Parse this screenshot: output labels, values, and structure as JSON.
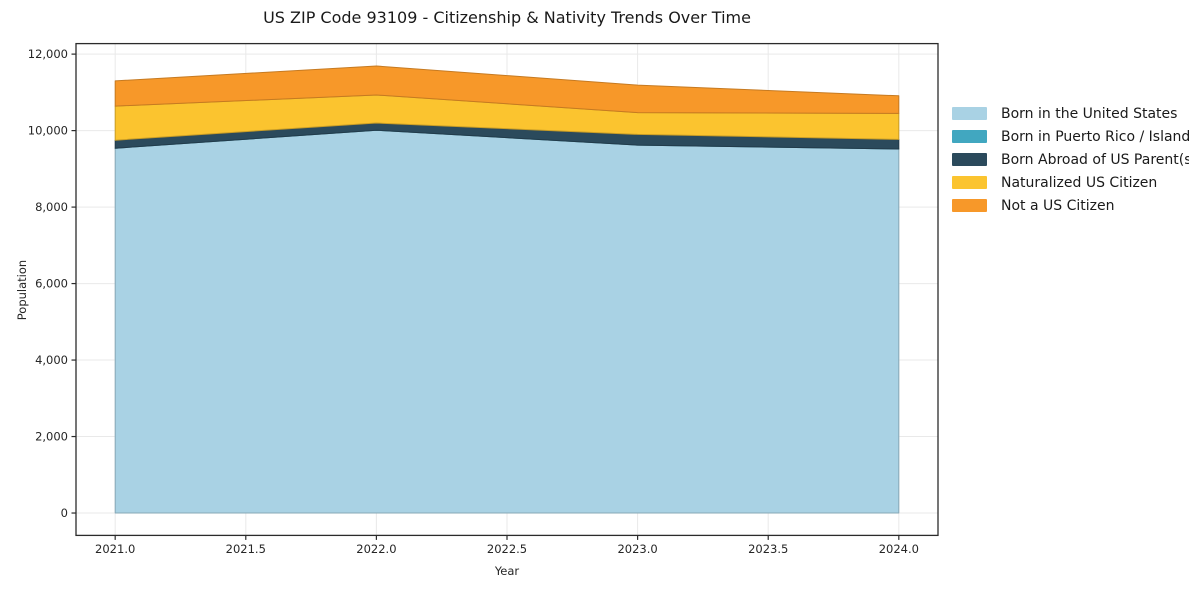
{
  "chart_data": {
    "type": "area",
    "stacked": true,
    "title": "US ZIP Code 93109 - Citizenship & Nativity Trends Over Time",
    "xlabel": "Year",
    "ylabel": "Population",
    "x": [
      2021,
      2022,
      2023,
      2024
    ],
    "series": [
      {
        "name": "Born in the United States",
        "color": "#a9d2e4",
        "values": [
          9540,
          10010,
          9620,
          9520
        ]
      },
      {
        "name": "Born in Puerto Rico / Islands",
        "color": "#41a7c0",
        "values": [
          0,
          0,
          0,
          0
        ]
      },
      {
        "name": "Born Abroad of US Parent(s)",
        "color": "#2b4a5c",
        "values": [
          210,
          190,
          280,
          250
        ]
      },
      {
        "name": "Naturalized US Citizen",
        "color": "#fbc42f",
        "values": [
          890,
          730,
          570,
          680
        ]
      },
      {
        "name": "Not a US Citizen",
        "color": "#f79829",
        "values": [
          660,
          760,
          720,
          460
        ]
      }
    ],
    "totals": [
      11300,
      11690,
      11190,
      10910
    ],
    "xlim": [
      2020.85,
      2024.15
    ],
    "ylim": [
      -585,
      12275
    ],
    "xticks": [
      2021.0,
      2021.5,
      2022.0,
      2022.5,
      2023.0,
      2023.5,
      2024.0
    ],
    "xtick_labels": [
      "2021.0",
      "2021.5",
      "2022.0",
      "2022.5",
      "2023.0",
      "2023.5",
      "2024.0"
    ],
    "yticks": [
      0,
      2000,
      4000,
      6000,
      8000,
      10000,
      12000
    ],
    "ytick_labels": [
      "0",
      "2,000",
      "4,000",
      "6,000",
      "8,000",
      "10,000",
      "12,000"
    ],
    "grid": true,
    "grid_color": "#e9e9e9",
    "spine_color": "#2b2b2b",
    "background_color": "#ffffff",
    "legend_position": "right"
  }
}
